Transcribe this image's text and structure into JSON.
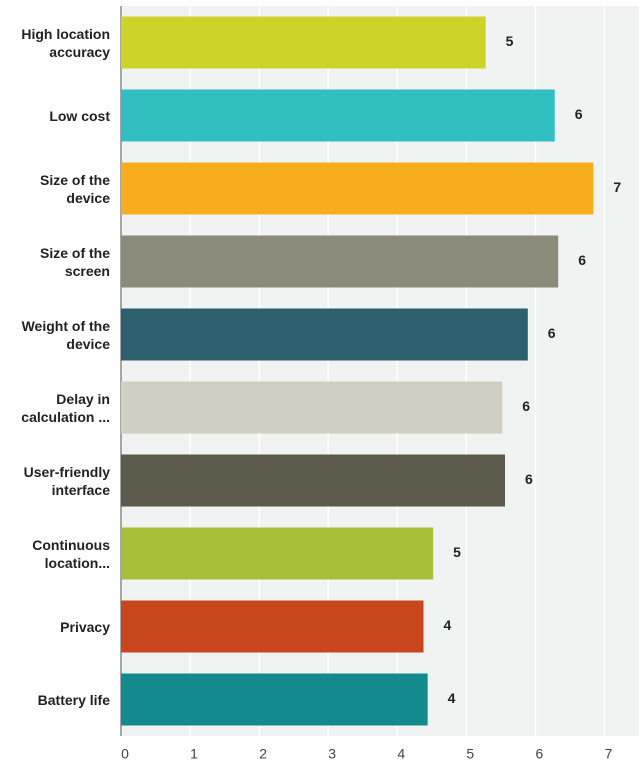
{
  "chart_data": {
    "type": "hbar",
    "categories": [
      "High location accuracy",
      "Low cost",
      "Size of the device",
      "Size of the screen",
      "Weight of the device",
      "Delay in calculation ...",
      "User-friendly interface",
      "Continuous location...",
      "Privacy",
      "Battery life"
    ],
    "values": [
      5.28,
      6.28,
      6.84,
      6.33,
      5.89,
      5.52,
      5.56,
      4.52,
      4.38,
      4.44
    ],
    "value_labels": [
      "5",
      "6",
      "7",
      "6",
      "6",
      "6",
      "6",
      "5",
      "4",
      "4"
    ],
    "colors": [
      "#cdd329",
      "#32bfc1",
      "#f6ae1e",
      "#8a8b7a",
      "#2e5f6e",
      "#d0cfc2",
      "#5b5a4b",
      "#a8bf38",
      "#c8451e",
      "#138a8e"
    ],
    "xlim": [
      0,
      7.5
    ],
    "xticks": [
      0,
      1,
      2,
      3,
      4,
      5,
      6,
      7
    ],
    "grid": true
  }
}
